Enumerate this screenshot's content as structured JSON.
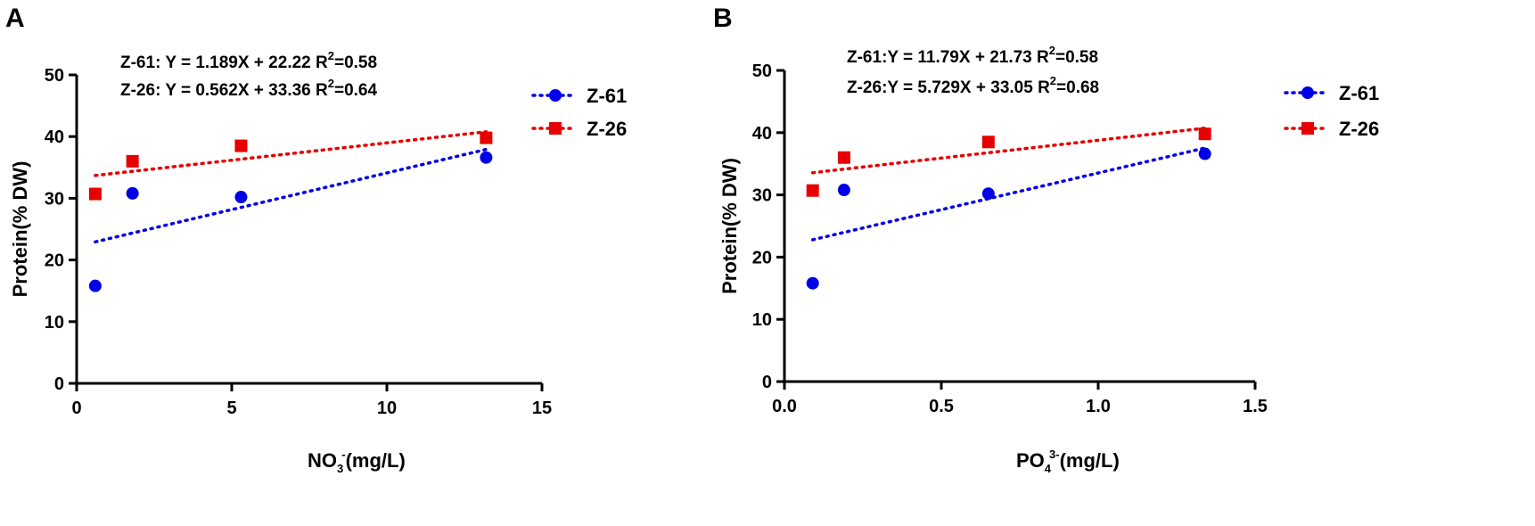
{
  "chart_data": [
    {
      "panel": "A",
      "type": "scatter",
      "x_label_parts": {
        "main": "NO",
        "sub": "3",
        "sup": "-",
        "tail": "(mg/L)"
      },
      "ylabel": "Protein(% DW)",
      "xlim": [
        0,
        15
      ],
      "ylim": [
        0,
        50
      ],
      "xticks": [
        "0",
        "5",
        "10",
        "15"
      ],
      "xtick_values": [
        0,
        5,
        10,
        15
      ],
      "yticks": [
        "0",
        "10",
        "20",
        "30",
        "40",
        "50"
      ],
      "ytick_values": [
        0,
        10,
        20,
        30,
        40,
        50
      ],
      "series": [
        {
          "name": "Z-61",
          "marker": "circle",
          "color": "#0000e6",
          "x": [
            0.6,
            1.8,
            5.3,
            13.2
          ],
          "y": [
            15.8,
            30.8,
            30.2,
            36.6
          ],
          "fit": {
            "slope": 1.189,
            "intercept": 22.22,
            "x_range": [
              0.6,
              13.2
            ]
          },
          "equation": {
            "prefix": "Z-61: Y = 1.189X + 22.22 R",
            "sup": "2",
            "suffix": "=0.58"
          }
        },
        {
          "name": "Z-26",
          "marker": "square",
          "color": "#e60000",
          "x": [
            0.6,
            1.8,
            5.3,
            13.2
          ],
          "y": [
            30.7,
            36.0,
            38.5,
            39.8
          ],
          "fit": {
            "slope": 0.562,
            "intercept": 33.36,
            "x_range": [
              0.6,
              13.2
            ]
          },
          "equation": {
            "prefix": "Z-26: Y = 0.562X + 33.36 R",
            "sup": "2",
            "suffix": "=0.64"
          }
        }
      ]
    },
    {
      "panel": "B",
      "type": "scatter",
      "x_label_parts": {
        "main": "PO",
        "sub": "4",
        "sup": "3-",
        "tail": "(mg/L)"
      },
      "ylabel": "Protein(% DW)",
      "xlim": [
        0,
        1.5
      ],
      "ylim": [
        0,
        50
      ],
      "xticks": [
        "0.0",
        "0.5",
        "1.0",
        "1.5"
      ],
      "xtick_values": [
        0,
        0.5,
        1.0,
        1.5
      ],
      "yticks": [
        "0",
        "10",
        "20",
        "30",
        "40",
        "50"
      ],
      "ytick_values": [
        0,
        10,
        20,
        30,
        40,
        50
      ],
      "series": [
        {
          "name": "Z-61",
          "marker": "circle",
          "color": "#0000e6",
          "x": [
            0.09,
            0.19,
            0.65,
            1.34
          ],
          "y": [
            15.8,
            30.8,
            30.2,
            36.6
          ],
          "fit": {
            "slope": 11.79,
            "intercept": 21.73,
            "x_range": [
              0.09,
              1.34
            ]
          },
          "equation": {
            "prefix": "Z-61:Y = 11.79X + 21.73 R",
            "sup": "2",
            "suffix": "=0.58"
          }
        },
        {
          "name": "Z-26",
          "marker": "square",
          "color": "#e60000",
          "x": [
            0.09,
            0.19,
            0.65,
            1.34
          ],
          "y": [
            30.7,
            36.0,
            38.5,
            39.8
          ],
          "fit": {
            "slope": 5.729,
            "intercept": 33.05,
            "x_range": [
              0.09,
              1.34
            ]
          },
          "equation": {
            "prefix": "Z-26:Y = 5.729X + 33.05 R",
            "sup": "2",
            "suffix": "=0.68"
          }
        }
      ]
    }
  ]
}
